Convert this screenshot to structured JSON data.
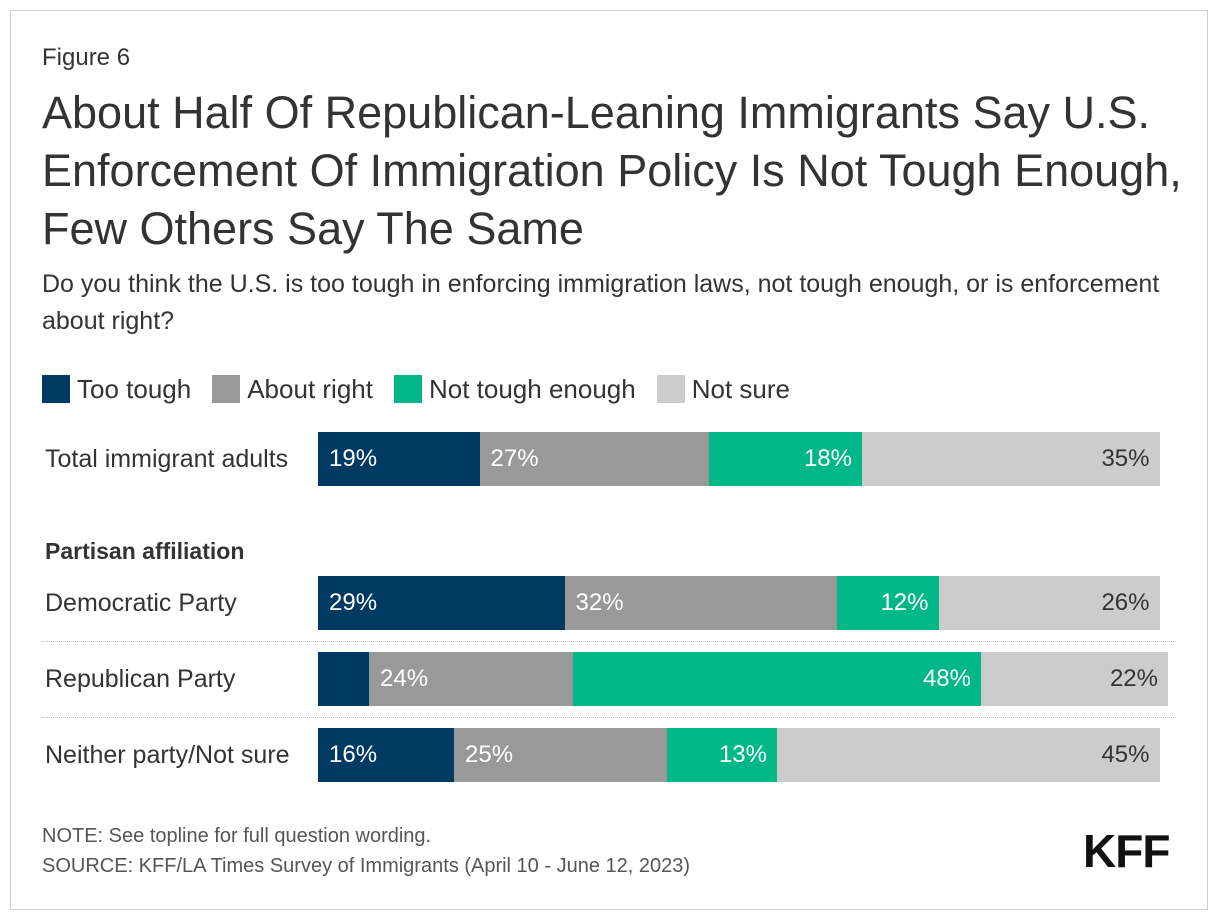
{
  "figure_label": "Figure 6",
  "title": "About Half Of Republican-Leaning Immigrants Say U.S. Enforcement Of Immigration Policy Is Not Tough Enough, Few Others Say The Same",
  "subtitle": "Do you think the U.S. is too tough in enforcing immigration laws, not tough enough, or is enforcement about right?",
  "colors": {
    "too_tough": "#003a63",
    "about_right": "#999999",
    "not_tough_enough": "#00b887",
    "not_sure": "#cccccc"
  },
  "legend": {
    "too_tough": "Too tough",
    "about_right": "About right",
    "not_tough_enough": "Not tough enough",
    "not_sure": "Not sure"
  },
  "section_label": "Partisan affiliation",
  "chart_data": {
    "type": "bar",
    "orientation": "horizontal",
    "stacked": true,
    "categories": [
      "Total immigrant adults",
      "Democratic Party",
      "Republican Party",
      "Neither party/Not sure"
    ],
    "series": [
      {
        "name": "Too tough",
        "values": [
          19,
          29,
          6,
          16
        ],
        "labels": [
          "19%",
          "29%",
          "",
          "16%"
        ]
      },
      {
        "name": "About right",
        "values": [
          27,
          32,
          24,
          25
        ],
        "labels": [
          "27%",
          "32%",
          "24%",
          "25%"
        ]
      },
      {
        "name": "Not tough enough",
        "values": [
          18,
          12,
          48,
          13
        ],
        "labels": [
          "18%",
          "12%",
          "48%",
          "13%"
        ]
      },
      {
        "name": "Not sure",
        "values": [
          35,
          26,
          22,
          45
        ],
        "labels": [
          "35%",
          "26%",
          "22%",
          "45%"
        ]
      }
    ],
    "legend_position": "top-left",
    "grid": false
  },
  "note": "NOTE: See topline for full question wording.",
  "source": "SOURCE: KFF/LA Times Survey of Immigrants (April 10 - June 12, 2023)",
  "logo": "KFF"
}
